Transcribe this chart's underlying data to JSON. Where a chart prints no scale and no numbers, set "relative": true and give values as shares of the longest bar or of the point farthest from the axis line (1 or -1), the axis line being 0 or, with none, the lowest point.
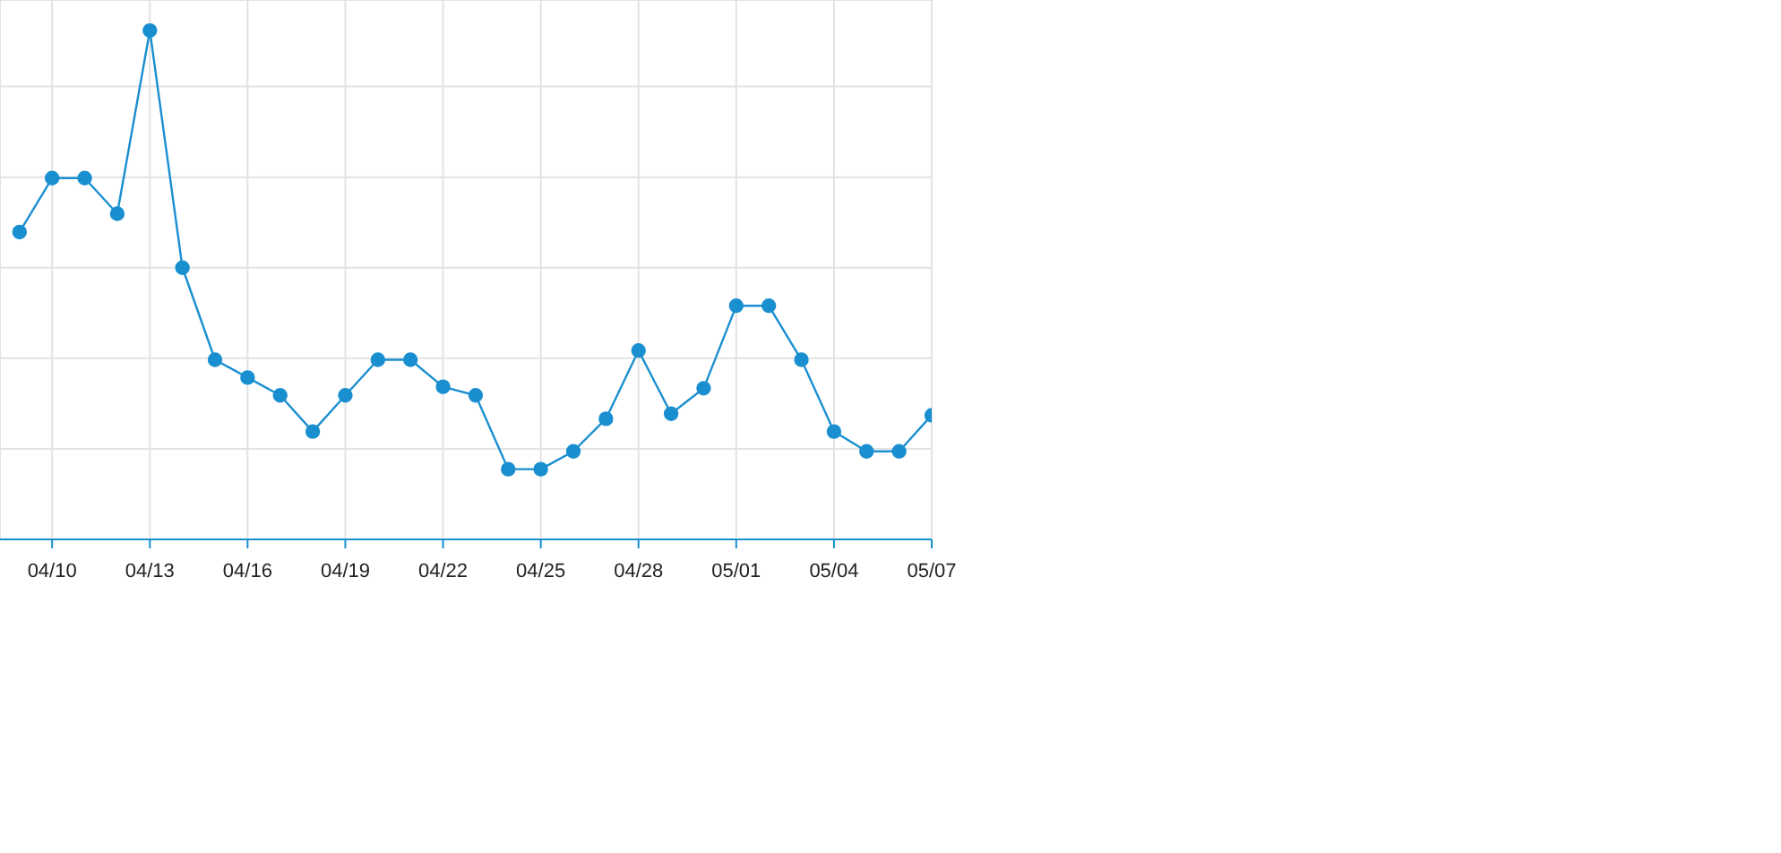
{
  "chart_data": {
    "type": "line",
    "relative": true,
    "categories": [
      null,
      "04/10",
      null,
      null,
      "04/13",
      null,
      null,
      "04/16",
      null,
      null,
      "04/19",
      null,
      null,
      "04/22",
      null,
      null,
      "04/25",
      null,
      null,
      "04/28",
      null,
      null,
      "05/01",
      null,
      null,
      "05/04",
      null,
      null,
      "05/07"
    ],
    "series": [
      {
        "color": "#1a8fd0",
        "values": [
          0.604,
          0.71,
          0.71,
          0.64,
          1,
          0.534,
          0.353,
          0.318,
          0.283,
          0.212,
          0.283,
          0.353,
          0.353,
          0.3,
          0.283,
          0.138,
          0.138,
          0.173,
          0.237,
          0.371,
          0.247,
          0.297,
          0.459,
          0.459,
          0.353,
          0.212,
          0.173,
          0.173,
          0.244
        ]
      }
    ],
    "grid": true,
    "marker": "circle",
    "line_style": "solid"
  }
}
